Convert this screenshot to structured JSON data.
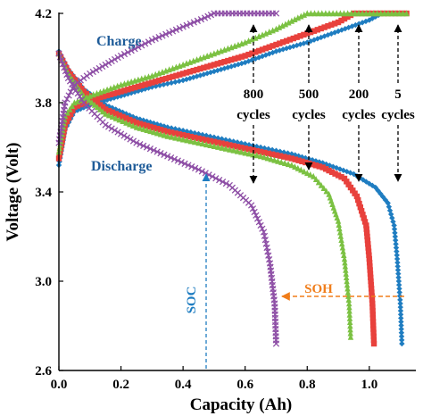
{
  "chart_data": {
    "type": "line",
    "xlabel": "Capacity (Ah)",
    "ylabel": "Voltage (Volt)",
    "xlim": [
      0,
      1.15
    ],
    "ylim": [
      2.6,
      4.2
    ],
    "xticks": [
      "0.0",
      "0.2",
      "0.4",
      "0.6",
      "0.8",
      "1.0"
    ],
    "yticks": [
      "2.6",
      "3.0",
      "3.4",
      "3.8",
      "4.2"
    ],
    "grid": false,
    "series": [
      {
        "name": "5 cycles",
        "marker": "diamond",
        "color": "#1f7dc1",
        "charge": [
          [
            0,
            3.52
          ],
          [
            0.02,
            3.68
          ],
          [
            0.05,
            3.76
          ],
          [
            0.1,
            3.79
          ],
          [
            0.2,
            3.83
          ],
          [
            0.3,
            3.87
          ],
          [
            0.4,
            3.9
          ],
          [
            0.5,
            3.94
          ],
          [
            0.6,
            3.98
          ],
          [
            0.7,
            4.03
          ],
          [
            0.8,
            4.07
          ],
          [
            0.9,
            4.12
          ],
          [
            1.0,
            4.17
          ],
          [
            1.04,
            4.2
          ],
          [
            1.12,
            4.2
          ]
        ],
        "discharge": [
          [
            0,
            4.03
          ],
          [
            0.03,
            3.95
          ],
          [
            0.08,
            3.86
          ],
          [
            0.15,
            3.79
          ],
          [
            0.25,
            3.73
          ],
          [
            0.35,
            3.69
          ],
          [
            0.45,
            3.66
          ],
          [
            0.55,
            3.63
          ],
          [
            0.65,
            3.6
          ],
          [
            0.75,
            3.57
          ],
          [
            0.85,
            3.53
          ],
          [
            0.95,
            3.48
          ],
          [
            1.02,
            3.42
          ],
          [
            1.06,
            3.35
          ],
          [
            1.08,
            3.25
          ],
          [
            1.09,
            3.1
          ],
          [
            1.1,
            2.9
          ],
          [
            1.105,
            2.72
          ]
        ]
      },
      {
        "name": "200 cycles",
        "marker": "square",
        "color": "#e8413c",
        "charge": [
          [
            0,
            3.55
          ],
          [
            0.02,
            3.7
          ],
          [
            0.05,
            3.78
          ],
          [
            0.1,
            3.81
          ],
          [
            0.2,
            3.85
          ],
          [
            0.3,
            3.89
          ],
          [
            0.4,
            3.93
          ],
          [
            0.5,
            3.97
          ],
          [
            0.6,
            4.01
          ],
          [
            0.7,
            4.06
          ],
          [
            0.8,
            4.11
          ],
          [
            0.9,
            4.16
          ],
          [
            0.95,
            4.2
          ],
          [
            1.12,
            4.2
          ]
        ],
        "discharge": [
          [
            0,
            4.02
          ],
          [
            0.03,
            3.94
          ],
          [
            0.08,
            3.85
          ],
          [
            0.15,
            3.77
          ],
          [
            0.25,
            3.71
          ],
          [
            0.35,
            3.67
          ],
          [
            0.45,
            3.64
          ],
          [
            0.55,
            3.61
          ],
          [
            0.65,
            3.58
          ],
          [
            0.75,
            3.55
          ],
          [
            0.85,
            3.51
          ],
          [
            0.92,
            3.46
          ],
          [
            0.96,
            3.38
          ],
          [
            0.99,
            3.25
          ],
          [
            1.0,
            3.1
          ],
          [
            1.01,
            2.9
          ],
          [
            1.015,
            2.72
          ]
        ]
      },
      {
        "name": "500 cycles",
        "marker": "triangle",
        "color": "#7bc142",
        "charge": [
          [
            0,
            3.58
          ],
          [
            0.02,
            3.74
          ],
          [
            0.05,
            3.8
          ],
          [
            0.1,
            3.83
          ],
          [
            0.2,
            3.88
          ],
          [
            0.3,
            3.92
          ],
          [
            0.4,
            3.97
          ],
          [
            0.5,
            4.02
          ],
          [
            0.6,
            4.07
          ],
          [
            0.7,
            4.13
          ],
          [
            0.77,
            4.18
          ],
          [
            0.8,
            4.2
          ],
          [
            1.12,
            4.2
          ]
        ],
        "discharge": [
          [
            0,
            4.02
          ],
          [
            0.03,
            3.93
          ],
          [
            0.08,
            3.83
          ],
          [
            0.15,
            3.75
          ],
          [
            0.25,
            3.69
          ],
          [
            0.35,
            3.65
          ],
          [
            0.45,
            3.62
          ],
          [
            0.55,
            3.59
          ],
          [
            0.65,
            3.56
          ],
          [
            0.75,
            3.52
          ],
          [
            0.82,
            3.47
          ],
          [
            0.87,
            3.39
          ],
          [
            0.9,
            3.27
          ],
          [
            0.92,
            3.1
          ],
          [
            0.935,
            2.9
          ],
          [
            0.94,
            2.75
          ]
        ]
      },
      {
        "name": "800 cycles",
        "marker": "x",
        "color": "#8e4fa6",
        "charge": [
          [
            0,
            3.62
          ],
          [
            0.02,
            3.8
          ],
          [
            0.05,
            3.88
          ],
          [
            0.1,
            3.93
          ],
          [
            0.2,
            4.01
          ],
          [
            0.3,
            4.08
          ],
          [
            0.4,
            4.14
          ],
          [
            0.47,
            4.18
          ],
          [
            0.5,
            4.2
          ],
          [
            0.7,
            4.2
          ]
        ],
        "discharge": [
          [
            0,
            4.02
          ],
          [
            0.03,
            3.91
          ],
          [
            0.08,
            3.8
          ],
          [
            0.15,
            3.7
          ],
          [
            0.25,
            3.62
          ],
          [
            0.35,
            3.56
          ],
          [
            0.45,
            3.5
          ],
          [
            0.55,
            3.43
          ],
          [
            0.62,
            3.34
          ],
          [
            0.66,
            3.22
          ],
          [
            0.68,
            3.08
          ],
          [
            0.695,
            2.9
          ],
          [
            0.7,
            2.72
          ]
        ]
      }
    ],
    "annotations": {
      "charge": "Charge",
      "discharge": "Discharge",
      "cycle_labels": [
        {
          "count": "800",
          "unit": "cycles"
        },
        {
          "count": "500",
          "unit": "cycles"
        },
        {
          "count": "200",
          "unit": "cycles"
        },
        {
          "count": "5",
          "unit": "cycles"
        }
      ],
      "soc": "SOC",
      "soh": "SOH"
    }
  },
  "colors": {
    "soc_arrow": "#1f7dc1",
    "soh_arrow": "#f07d1a",
    "axis": "#000000"
  }
}
